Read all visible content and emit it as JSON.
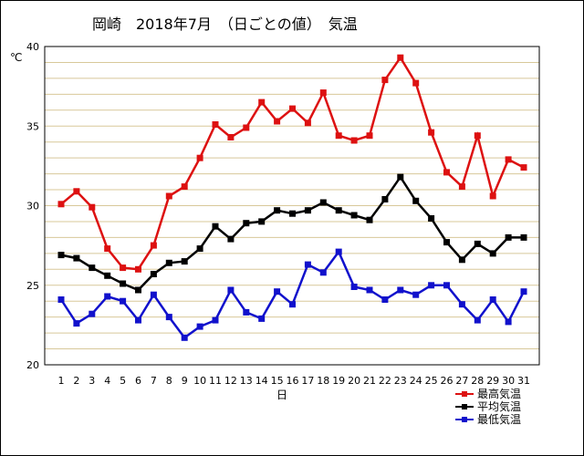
{
  "chart_title": "岡崎　2018年7月　（日ごとの値）　気温",
  "colors": {
    "max": "#dd1111",
    "mean": "#000000",
    "min": "#1111cc",
    "grid": "#d8c89a",
    "background": "#ffffff"
  },
  "chart_data": {
    "type": "line",
    "title": "岡崎　2018年7月　（日ごとの値）　気温",
    "ylabel": "℃",
    "xlabel": "日",
    "ylim": [
      20,
      40
    ],
    "y_ticks": [
      20,
      25,
      30,
      35,
      40
    ],
    "grid": true,
    "legend_position": "bottom-right",
    "x": [
      1,
      2,
      3,
      4,
      5,
      6,
      7,
      8,
      9,
      10,
      11,
      12,
      13,
      14,
      15,
      16,
      17,
      18,
      19,
      20,
      21,
      22,
      23,
      24,
      25,
      26,
      27,
      28,
      29,
      30,
      31
    ],
    "series": [
      {
        "name": "最高気温",
        "color": "#dd1111",
        "values": [
          30.1,
          30.9,
          29.9,
          27.3,
          26.1,
          26.0,
          27.5,
          30.6,
          31.2,
          33.0,
          35.1,
          34.3,
          34.9,
          36.5,
          35.3,
          36.1,
          35.2,
          37.1,
          34.4,
          34.1,
          34.4,
          37.9,
          39.3,
          37.7,
          34.6,
          32.1,
          31.2,
          34.4,
          30.6,
          32.9,
          32.4
        ]
      },
      {
        "name": "平均気温",
        "color": "#000000",
        "values": [
          26.9,
          26.7,
          26.1,
          25.6,
          25.1,
          24.7,
          25.7,
          26.4,
          26.5,
          27.3,
          28.7,
          27.9,
          28.9,
          29.0,
          29.7,
          29.5,
          29.7,
          30.2,
          29.7,
          29.4,
          29.1,
          30.4,
          31.8,
          30.3,
          29.2,
          27.7,
          26.6,
          27.6,
          27.0,
          28.0,
          28.0
        ]
      },
      {
        "name": "最低気温",
        "color": "#1111cc",
        "values": [
          24.1,
          22.6,
          23.2,
          24.3,
          24.0,
          22.8,
          24.4,
          23.0,
          21.7,
          22.4,
          22.8,
          24.7,
          23.3,
          22.9,
          24.6,
          23.8,
          26.3,
          25.8,
          27.1,
          24.9,
          24.7,
          24.1,
          24.7,
          24.4,
          25.0,
          25.0,
          23.8,
          22.8,
          24.1,
          22.7,
          24.6
        ]
      }
    ]
  }
}
